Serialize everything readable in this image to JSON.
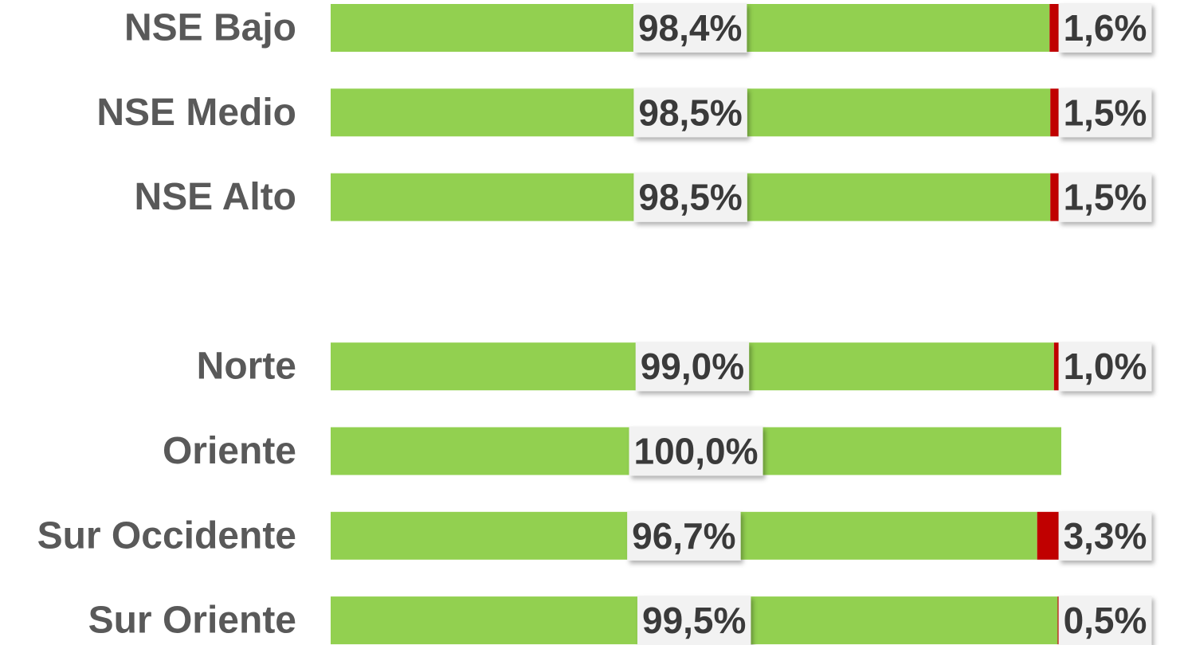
{
  "chart_data": {
    "type": "stacked-bar-horizontal",
    "categories": [
      "NSE Bajo",
      "NSE Medio",
      "NSE Alto",
      null,
      "Norte",
      "Oriente",
      "Sur Occidente",
      "Sur Oriente"
    ],
    "series": [
      {
        "color": "#92d050",
        "values": [
          98.4,
          98.5,
          98.5,
          null,
          99.0,
          100.0,
          96.7,
          99.5
        ],
        "value_labels": [
          "98,4%",
          "98,5%",
          "98,5%",
          null,
          "99,0%",
          "100,0%",
          "96,7%",
          "99,5%"
        ]
      },
      {
        "color": "#c00000",
        "values": [
          1.6,
          1.5,
          1.5,
          null,
          1.0,
          0,
          3.3,
          0.5
        ],
        "value_labels": [
          "1,6%",
          "1,5%",
          "1,5%",
          null,
          "1,0%",
          null,
          "3,3%",
          "0,5%"
        ]
      }
    ],
    "xlim": [
      0,
      100
    ]
  }
}
